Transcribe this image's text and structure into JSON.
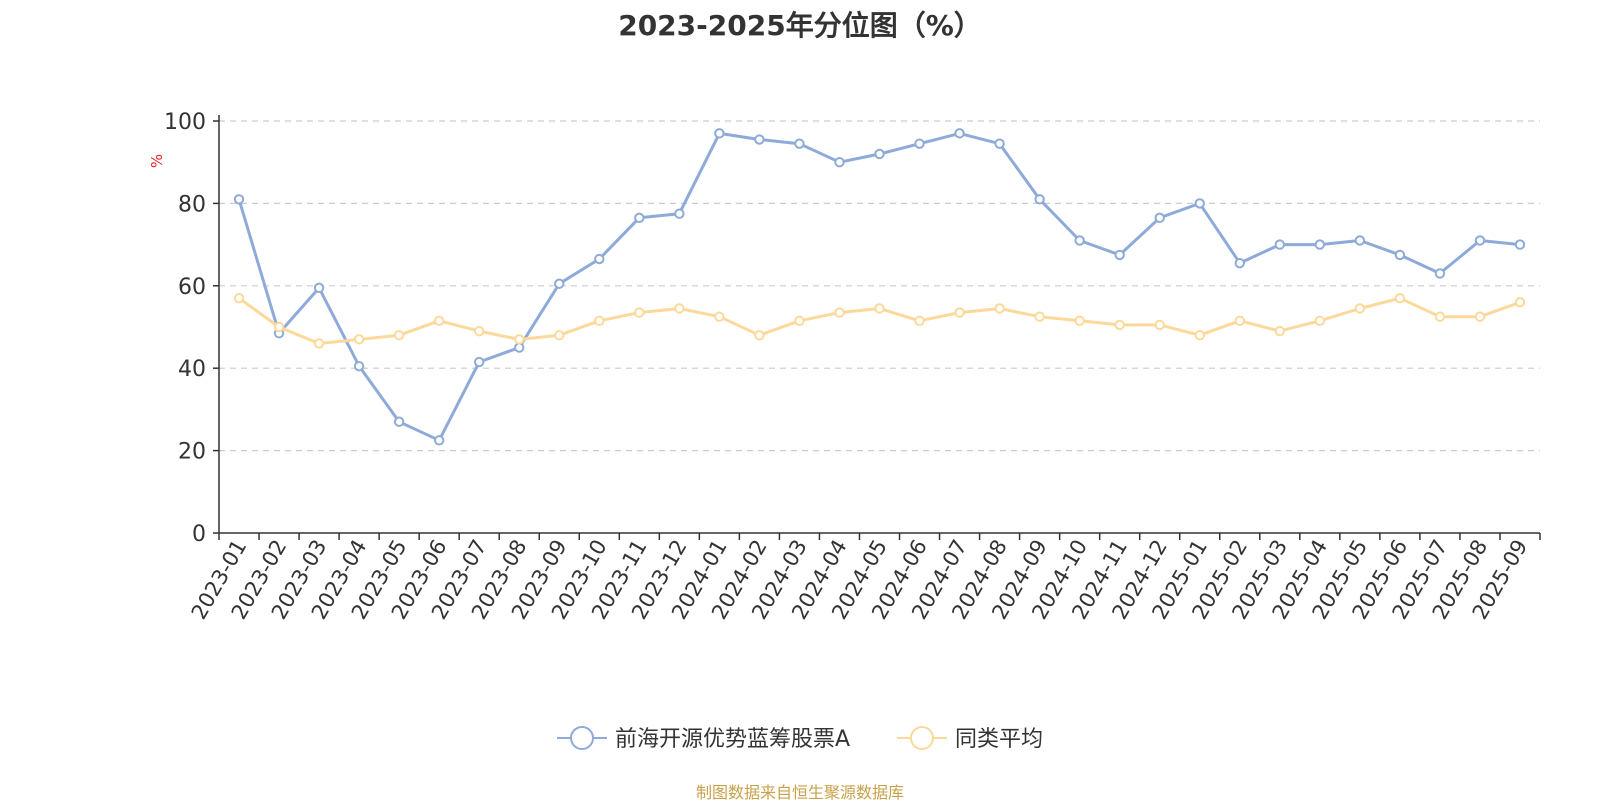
{
  "chart_data": {
    "type": "line",
    "title": "2023-2025年分位图（%）",
    "ylabel": "%",
    "xlabel": "",
    "ylim": [
      0,
      100
    ],
    "yticks": [
      0,
      20,
      40,
      60,
      80,
      100
    ],
    "grid": "horizontal dashed",
    "legend_position": "bottom-center",
    "categories": [
      "2023-01",
      "2023-02",
      "2023-03",
      "2023-04",
      "2023-05",
      "2023-06",
      "2023-07",
      "2023-08",
      "2023-09",
      "2023-10",
      "2023-11",
      "2023-12",
      "2024-01",
      "2024-02",
      "2024-03",
      "2024-04",
      "2024-05",
      "2024-06",
      "2024-07",
      "2024-08",
      "2024-09",
      "2024-10",
      "2024-11",
      "2024-12",
      "2025-01",
      "2025-02",
      "2025-03",
      "2025-04",
      "2025-05",
      "2025-06",
      "2025-07",
      "2025-08",
      "2025-09"
    ],
    "series": [
      {
        "name": "前海开源优势蓝筹股票A",
        "color": "#8eaad8",
        "values": [
          81,
          48.5,
          59.5,
          40.5,
          27,
          22.5,
          41.5,
          45,
          60.5,
          66.5,
          76.5,
          77.5,
          97,
          95.5,
          94.5,
          90,
          92,
          94.5,
          97,
          94.5,
          81,
          71,
          67.5,
          76.5,
          80,
          65.5,
          70,
          70,
          71,
          67.5,
          63,
          71,
          70
        ]
      },
      {
        "name": "同类平均",
        "color": "#fcd99b",
        "values": [
          57,
          50,
          46,
          47,
          48,
          51.5,
          49,
          47,
          48,
          51.5,
          53.5,
          54.5,
          52.5,
          48,
          51.5,
          53.5,
          54.5,
          51.5,
          53.5,
          54.5,
          52.5,
          51.5,
          50.5,
          50.5,
          48,
          51.5,
          49,
          51.5,
          54.5,
          57,
          52.5,
          52.5,
          56
        ]
      }
    ]
  },
  "footer": {
    "source": "制图数据来自恒生聚源数据库"
  }
}
